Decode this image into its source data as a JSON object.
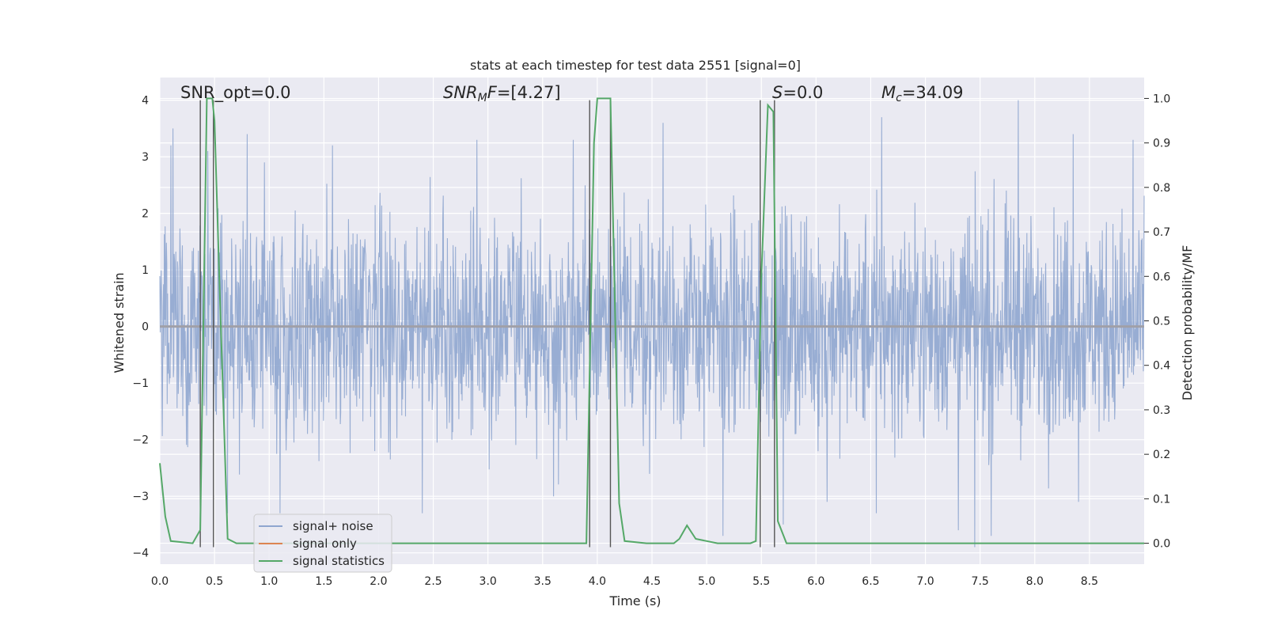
{
  "chart_data": {
    "type": "line",
    "title": "stats at each timestep for test data 2551 [signal=0]",
    "xlabel": "Time (s)",
    "ylabel": "Whitened strain",
    "y2label": "Detection probability/MF",
    "xlim": [
      0.0,
      9.0
    ],
    "ylim": [
      -4.2,
      4.4
    ],
    "y2lim": [
      -0.047,
      1.047
    ],
    "xticks": [
      "0.0",
      "0.5",
      "1.0",
      "1.5",
      "2.0",
      "2.5",
      "3.0",
      "3.5",
      "4.0",
      "4.5",
      "5.0",
      "5.5",
      "6.0",
      "6.5",
      "7.0",
      "7.5",
      "8.0",
      "8.5"
    ],
    "yticks": [
      "4",
      "3",
      "2",
      "1",
      "0",
      "−1",
      "−2",
      "−3",
      "−4"
    ],
    "y2ticks": [
      "1.0",
      "0.9",
      "0.8",
      "0.7",
      "0.6",
      "0.5",
      "0.4",
      "0.3",
      "0.2",
      "0.1",
      "0.0"
    ],
    "grid": true,
    "legend_position": "lower-left",
    "annotations": {
      "snr_opt": "SNR_opt=0.0",
      "snr_mf_sym": "SNR",
      "snr_mf_sub": "M",
      "snr_mf_sym2": "F",
      "snr_mf_val": "=[4.27]",
      "s_sym": "S",
      "s_val": "=0.0",
      "mc_sym": "M",
      "mc_sub": "c",
      "mc_val": "=34.09"
    },
    "colors": {
      "noise": "#8fa6cf",
      "signal_only": "#dd8452",
      "stats": "#55a868",
      "vlines": "#555555",
      "background": "#eaeaf2"
    },
    "series": [
      {
        "name": "signal+ noise",
        "axis": "left",
        "style": "dense noise trace, amplitude ~±2 with spikes to ±4, from 0.0 to 9.0 s",
        "spikes": [
          {
            "x": 0.1,
            "y": 3.2
          },
          {
            "x": 0.12,
            "y": 3.5
          },
          {
            "x": 0.44,
            "y": 3.1
          },
          {
            "x": 0.8,
            "y": 3.4
          },
          {
            "x": 1.58,
            "y": 3.2
          },
          {
            "x": 2.9,
            "y": 3.3
          },
          {
            "x": 3.78,
            "y": 3.3
          },
          {
            "x": 4.6,
            "y": 3.6
          },
          {
            "x": 6.6,
            "y": 3.7
          },
          {
            "x": 7.85,
            "y": 4.0
          },
          {
            "x": 8.35,
            "y": 3.4
          },
          {
            "x": 8.9,
            "y": 3.3
          },
          {
            "x": 1.1,
            "y": -3.3
          },
          {
            "x": 2.4,
            "y": -3.3
          },
          {
            "x": 3.6,
            "y": -3.0
          },
          {
            "x": 5.15,
            "y": -3.7
          },
          {
            "x": 5.7,
            "y": -3.5
          },
          {
            "x": 6.1,
            "y": -3.1
          },
          {
            "x": 6.55,
            "y": -3.3
          },
          {
            "x": 7.3,
            "y": -3.6
          },
          {
            "x": 7.45,
            "y": -3.9
          },
          {
            "x": 7.6,
            "y": -3.7
          },
          {
            "x": 8.4,
            "y": -3.1
          },
          {
            "x": 0.62,
            "y": -3.3
          }
        ]
      },
      {
        "name": "signal only",
        "axis": "left",
        "x": [
          0.0,
          9.0
        ],
        "y": [
          0.0,
          0.0
        ]
      },
      {
        "name": "signal statistics",
        "axis": "right",
        "x": [
          0.0,
          0.05,
          0.1,
          0.3,
          0.37,
          0.43,
          0.48,
          0.5,
          0.55,
          0.62,
          0.7,
          3.9,
          3.97,
          4.0,
          4.12,
          4.2,
          4.25,
          4.45,
          4.7,
          4.75,
          4.82,
          4.9,
          5.0,
          5.1,
          5.4,
          5.45,
          5.5,
          5.56,
          5.61,
          5.65,
          5.73,
          9.0
        ],
        "y": [
          0.18,
          0.06,
          0.005,
          0.0,
          0.03,
          1.0,
          1.0,
          0.95,
          0.55,
          0.01,
          0.0,
          0.0,
          0.9,
          1.0,
          1.0,
          0.09,
          0.005,
          0.0,
          0.0,
          0.01,
          0.04,
          0.01,
          0.005,
          0.0,
          0.0,
          0.005,
          0.6,
          0.985,
          0.97,
          0.05,
          0.0,
          0.0
        ]
      }
    ],
    "vlines": [
      0.37,
      0.49,
      3.93,
      4.12,
      5.49,
      5.62
    ],
    "legend": [
      "signal+ noise",
      "signal only",
      "signal statistics"
    ]
  }
}
